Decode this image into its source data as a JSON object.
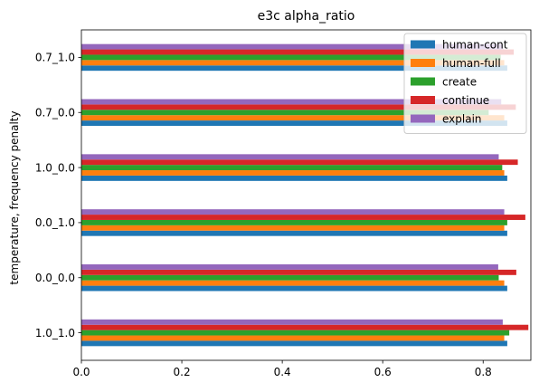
{
  "chart_data": {
    "type": "bar",
    "orientation": "horizontal",
    "title": "e3c alpha_ratio",
    "xlabel": "",
    "ylabel": "temperature, frequency penalty",
    "xlim": [
      0,
      0.895
    ],
    "xticks": [
      "0.0",
      "0.2",
      "0.4",
      "0.6",
      "0.8"
    ],
    "xtick_values": [
      0,
      0.2,
      0.4,
      0.6,
      0.8
    ],
    "categories": [
      "1.0_1.0",
      "0.0_0.0",
      "0.0_1.0",
      "1.0_0.0",
      "0.7_0.0",
      "0.7_1.0"
    ],
    "series": [
      {
        "name": "human-cont",
        "color": "#1f77b4",
        "values": [
          0.848,
          0.848,
          0.848,
          0.848,
          0.848,
          0.848
        ]
      },
      {
        "name": "human-full",
        "color": "#ff7f0e",
        "values": [
          0.842,
          0.842,
          0.842,
          0.842,
          0.842,
          0.842
        ]
      },
      {
        "name": "create",
        "color": "#2ca02c",
        "values": [
          0.852,
          0.831,
          0.848,
          0.838,
          0.811,
          0.835
        ]
      },
      {
        "name": "continue",
        "color": "#d62728",
        "values": [
          0.89,
          0.866,
          0.884,
          0.869,
          0.865,
          0.861
        ]
      },
      {
        "name": "explain",
        "color": "#9467bd",
        "values": [
          0.839,
          0.83,
          0.842,
          0.831,
          0.836,
          0.84
        ]
      }
    ],
    "grid": false,
    "legend_position": "top-right"
  }
}
